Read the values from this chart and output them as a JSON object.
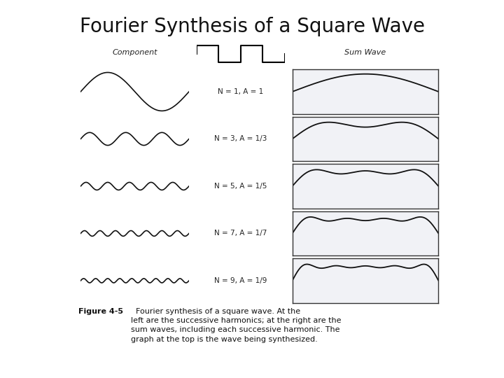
{
  "title": "Fourier Synthesis of a Square Wave",
  "title_fontsize": 20,
  "background_color": "#ffffff",
  "harmonics": [
    1,
    3,
    5,
    7,
    9
  ],
  "amplitudes": [
    1.0,
    0.3333,
    0.2,
    0.1429,
    0.1111
  ],
  "labels": [
    "N = 1, A = 1",
    "N = 3, A = 1/3",
    "N = 5, A = 1/5",
    "N = 7, A = 1/7",
    "N = 9, A = 1/9"
  ],
  "col_label_left": "Component",
  "col_label_right": "Sum Wave",
  "caption_bold": "Figure 4-5",
  "caption_text": "  Fourier synthesis of a square wave. At the left are the successive harmonics; at the right are the sum waves, including each successive harmonic. The graph at the top is the wave being synthesized.",
  "wave_color": "#111111",
  "box_edge_color": "#333333",
  "diagram_bg": "#d8dce8",
  "diagram_alpha": 0.35
}
